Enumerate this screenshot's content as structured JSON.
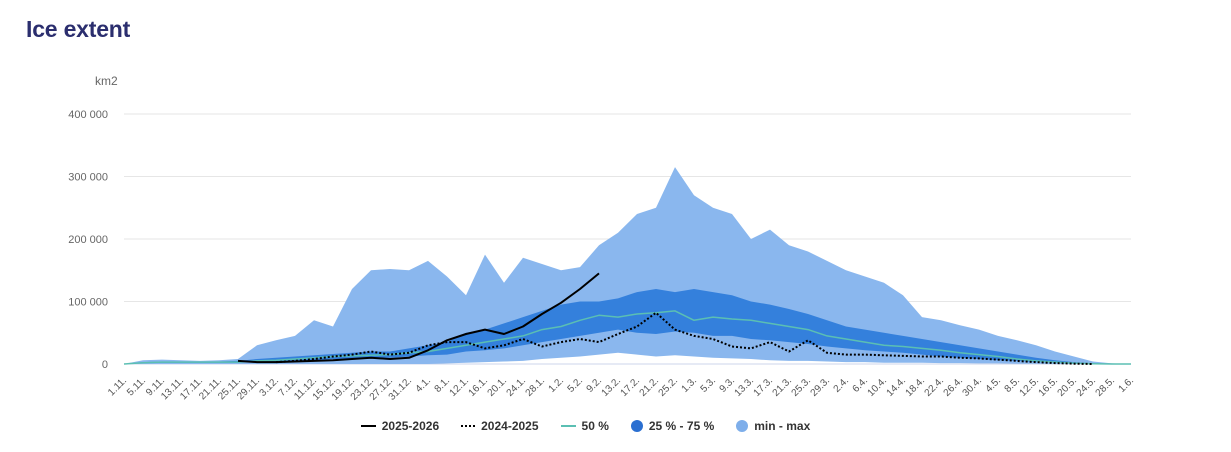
{
  "page": {
    "title": "Ice extent"
  },
  "chart_data": {
    "type": "area",
    "title": "Ice extent",
    "xlabel": "",
    "ylabel": "km2",
    "ylim": [
      0,
      400000
    ],
    "yticks": [
      0,
      100000,
      200000,
      300000,
      400000
    ],
    "ytick_labels": [
      "0",
      "100 000",
      "200 000",
      "300 000",
      "400 000"
    ],
    "grid": true,
    "legend_position": "bottom",
    "x": [
      "1.11.",
      "5.11.",
      "9.11.",
      "13.11.",
      "17.11.",
      "21.11.",
      "25.11.",
      "29.11.",
      "3.12.",
      "7.12.",
      "11.12.",
      "15.12.",
      "19.12.",
      "23.12.",
      "27.12.",
      "31.12.",
      "4.1.",
      "8.1.",
      "12.1.",
      "16.1.",
      "20.1.",
      "24.1.",
      "28.1.",
      "1.2.",
      "5.2.",
      "9.2.",
      "13.2.",
      "17.2.",
      "21.2.",
      "25.2.",
      "1.3.",
      "5.3.",
      "9.3.",
      "13.3.",
      "17.3.",
      "21.3.",
      "25.3.",
      "29.3.",
      "2.4.",
      "6.4.",
      "10.4.",
      "14.4.",
      "18.4.",
      "22.4.",
      "26.4.",
      "30.4.",
      "4.5.",
      "8.5.",
      "12.5.",
      "16.5.",
      "20.5.",
      "24.5.",
      "28.5.",
      "1.6."
    ],
    "colors": {
      "minmax": "#8ab7ee",
      "iqr": "#3480dc",
      "median": "#5bbfb3",
      "current": "#000000",
      "previous": "#000000",
      "grid": "#e6e6e6",
      "title": "#2b2e6e"
    },
    "series": [
      {
        "name": "min - max",
        "kind": "range",
        "low": [
          0,
          0,
          0,
          0,
          0,
          0,
          0,
          0,
          0,
          0,
          0,
          0,
          0,
          0,
          0,
          0,
          0,
          1000,
          2000,
          3000,
          4000,
          5000,
          8000,
          10000,
          12000,
          15000,
          18000,
          15000,
          12000,
          14000,
          12000,
          10000,
          9000,
          8000,
          6000,
          5000,
          5000,
          4000,
          3000,
          3000,
          2000,
          2000,
          2000,
          1500,
          1500,
          1000,
          1000,
          500,
          500,
          0,
          0,
          0,
          0,
          0
        ],
        "high": [
          0,
          6000,
          7000,
          6000,
          5000,
          6000,
          8000,
          30000,
          38000,
          45000,
          70000,
          60000,
          120000,
          150000,
          152000,
          150000,
          165000,
          140000,
          110000,
          175000,
          130000,
          170000,
          160000,
          150000,
          155000,
          190000,
          210000,
          240000,
          250000,
          315000,
          270000,
          250000,
          240000,
          200000,
          215000,
          190000,
          180000,
          165000,
          150000,
          140000,
          130000,
          110000,
          75000,
          70000,
          62000,
          55000,
          45000,
          38000,
          30000,
          20000,
          12000,
          4000,
          1000,
          0
        ]
      },
      {
        "name": "25 % - 75 %",
        "kind": "range",
        "low": [
          0,
          1500,
          2000,
          2000,
          2000,
          2000,
          2000,
          3000,
          4000,
          5000,
          6000,
          8000,
          8000,
          10000,
          10000,
          12000,
          14000,
          15000,
          20000,
          22000,
          25000,
          30000,
          35000,
          40000,
          45000,
          50000,
          55000,
          50000,
          48000,
          52000,
          50000,
          45000,
          45000,
          40000,
          38000,
          35000,
          32000,
          28000,
          25000,
          22000,
          20000,
          18000,
          15000,
          12000,
          10000,
          8000,
          6000,
          5000,
          3000,
          2000,
          1000,
          500,
          0,
          0
        ],
        "high": [
          0,
          3000,
          4000,
          4000,
          4000,
          4000,
          5000,
          8000,
          10000,
          12000,
          14000,
          16000,
          18000,
          20000,
          20000,
          25000,
          30000,
          35000,
          50000,
          55000,
          65000,
          75000,
          85000,
          95000,
          100000,
          100000,
          105000,
          115000,
          120000,
          115000,
          120000,
          115000,
          110000,
          100000,
          95000,
          88000,
          80000,
          70000,
          60000,
          55000,
          50000,
          45000,
          40000,
          35000,
          30000,
          25000,
          20000,
          15000,
          10000,
          6000,
          3000,
          1000,
          0,
          0
        ]
      },
      {
        "name": "50 %",
        "kind": "line",
        "values": [
          0,
          2000,
          3000,
          3000,
          3000,
          3000,
          3000,
          5000,
          6000,
          8000,
          10000,
          12000,
          13000,
          14000,
          15000,
          18000,
          20000,
          25000,
          30000,
          35000,
          40000,
          45000,
          55000,
          60000,
          70000,
          78000,
          75000,
          80000,
          82000,
          85000,
          70000,
          75000,
          72000,
          70000,
          65000,
          60000,
          55000,
          45000,
          40000,
          35000,
          30000,
          28000,
          25000,
          22000,
          18000,
          15000,
          12000,
          8000,
          5000,
          3000,
          1500,
          500,
          0,
          0
        ]
      },
      {
        "name": "2025-2026",
        "kind": "line",
        "values": [
          null,
          null,
          null,
          null,
          null,
          null,
          5000,
          3000,
          3000,
          4000,
          5000,
          6000,
          8000,
          10000,
          8000,
          10000,
          22000,
          38000,
          48000,
          55000,
          48000,
          60000,
          80000,
          98000,
          120000,
          145000,
          null,
          null,
          null,
          null,
          null,
          null,
          null,
          null,
          null,
          null,
          null,
          null,
          null,
          null,
          null,
          null,
          null,
          null,
          null,
          null,
          null,
          null,
          null,
          null,
          null,
          null,
          null,
          null
        ]
      },
      {
        "name": "2024-2025",
        "kind": "line",
        "dash": "dotted",
        "values": [
          null,
          null,
          null,
          null,
          null,
          null,
          null,
          null,
          3000,
          5000,
          8000,
          12000,
          15000,
          20000,
          15000,
          18000,
          30000,
          35000,
          35000,
          25000,
          30000,
          40000,
          28000,
          35000,
          40000,
          35000,
          48000,
          60000,
          82000,
          55000,
          45000,
          40000,
          28000,
          25000,
          35000,
          20000,
          38000,
          18000,
          15000,
          15000,
          14000,
          13000,
          12000,
          12000,
          10000,
          9000,
          7000,
          5000,
          3000,
          1500,
          500,
          0,
          null,
          null
        ]
      }
    ]
  },
  "legend": {
    "items": [
      {
        "label": "2025-2026",
        "symbol": "line"
      },
      {
        "label": "2024-2025",
        "symbol": "dotted"
      },
      {
        "label": "50 %",
        "symbol": "median"
      },
      {
        "label": "25 % - 75 %",
        "symbol": "circle-dark"
      },
      {
        "label": "min - max",
        "symbol": "circle-light"
      }
    ]
  }
}
